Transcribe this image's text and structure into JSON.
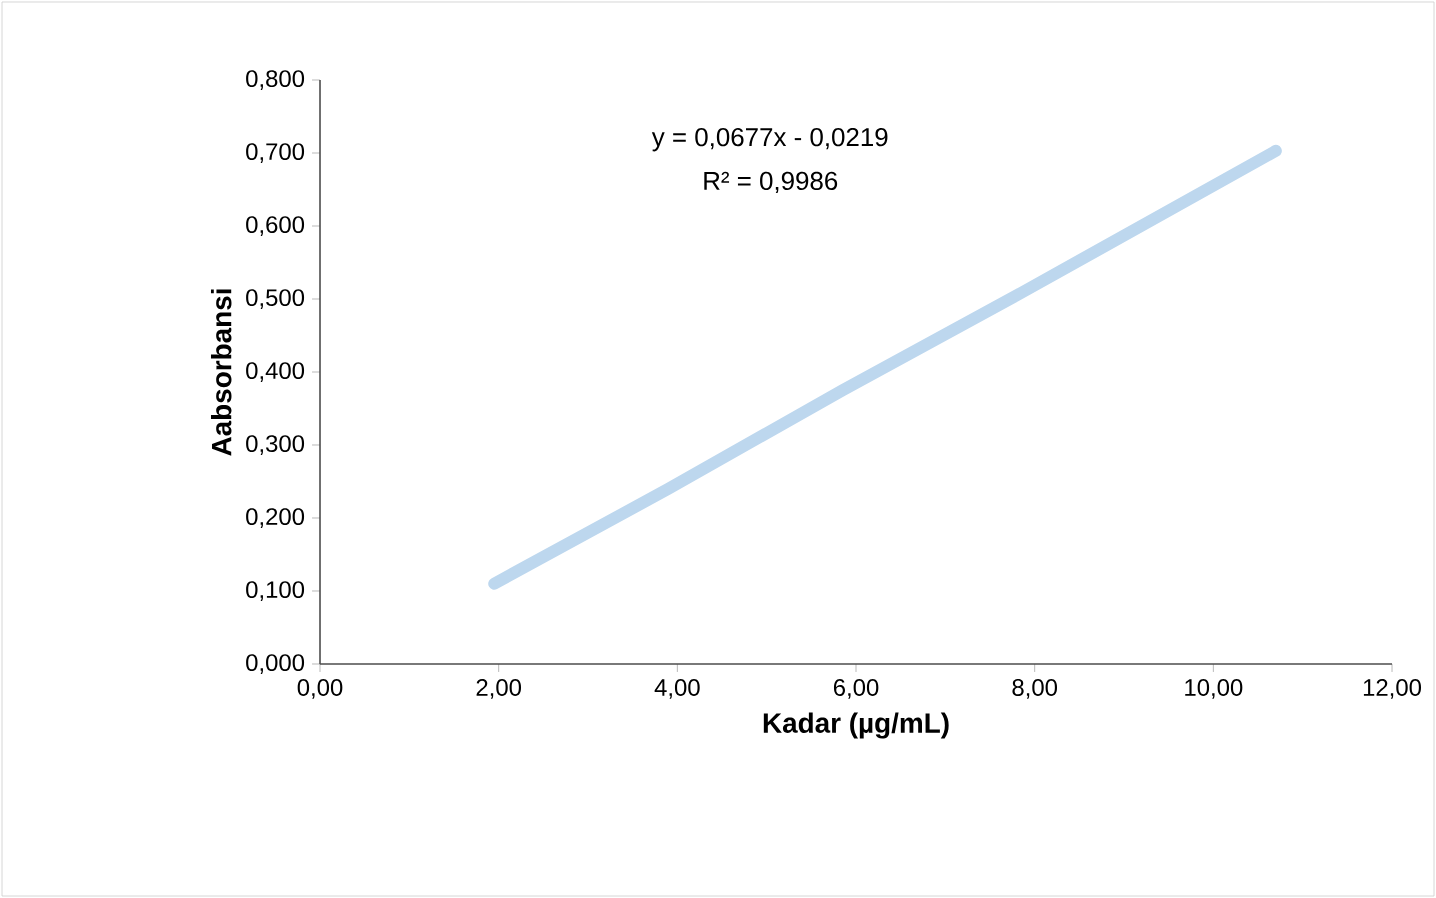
{
  "chart_data": {
    "type": "line",
    "xlabel": "Kadar (µg/mL)",
    "ylabel": "Aabsorbansi",
    "annotations": [
      "y = 0,0677x - 0,0219",
      "R² = 0,9986"
    ],
    "x": [
      1.95,
      3.9,
      5.85,
      7.8,
      10.7
    ],
    "series": [
      {
        "color": "#bdd7ee",
        "values": [
          0.11,
          0.24,
          0.375,
          0.505,
          0.703
        ]
      }
    ],
    "xlim": [
      0,
      12
    ],
    "ylim": [
      0,
      0.8
    ],
    "xticks": [
      {
        "value": 0,
        "label": "0,00"
      },
      {
        "value": 2,
        "label": "2,00"
      },
      {
        "value": 4,
        "label": "4,00"
      },
      {
        "value": 6,
        "label": "6,00"
      },
      {
        "value": 8,
        "label": "8,00"
      },
      {
        "value": 10,
        "label": "10,00"
      },
      {
        "value": 12,
        "label": "12,00"
      }
    ],
    "yticks": [
      {
        "value": 0,
        "label": "0,000"
      },
      {
        "value": 0.1,
        "label": "0,100"
      },
      {
        "value": 0.2,
        "label": "0,200"
      },
      {
        "value": 0.3,
        "label": "0,300"
      },
      {
        "value": 0.4,
        "label": "0,400"
      },
      {
        "value": 0.5,
        "label": "0,500"
      },
      {
        "value": 0.6,
        "label": "0,600"
      },
      {
        "value": 0.7,
        "label": "0,700"
      },
      {
        "value": 0.8,
        "label": "0,800"
      }
    ],
    "grid": false,
    "marker": "none",
    "line_style": "solid"
  }
}
